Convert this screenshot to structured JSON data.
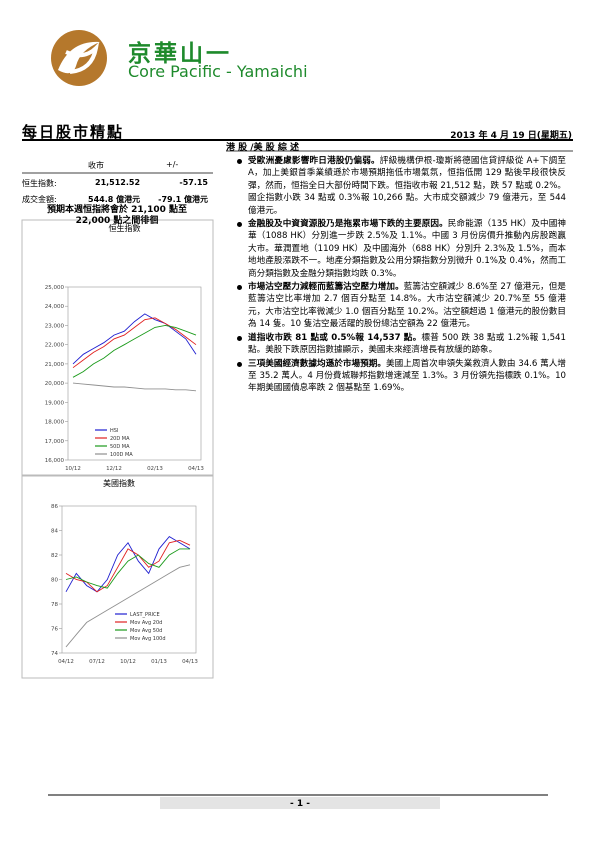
{
  "header": {
    "brand_cn": "京華山一",
    "brand_en": "Core Pacific - Yamaichi",
    "report_title": "每日股市精點",
    "date": "2013 年 4 月 19 日(星期五)"
  },
  "market_table": {
    "col_close": "收市",
    "col_change": "+/-",
    "rows": [
      [
        "恒生指數:",
        "21,512.52",
        "-57.15"
      ],
      [
        "成交金額:",
        "544.8 億港元",
        "-79.1 億港元"
      ]
    ],
    "outlook": "預期本週恒指將會於 21,100 點至 22,000 點之間徘徊"
  },
  "commentary": {
    "heading": "港 股 /美 股 綜 述",
    "items": [
      {
        "lead": "受歐洲憂慮影響昨日港股仍偏弱。",
        "text": "評級機構伊根-瓊斯將德國信貸評級從 A+下調至 A，加上美銀首季業績遜於市場預期拖低市場氣氛，恒指低開 129 點後早段很快反彈，然而，恒指全日大部份時間下跌。恒指收市報 21,512 點，跌 57 點或 0.2%。國企指數小跌 34 點或 0.3%報 10,266 點。大市成交額減少 79 億港元，至 544 億港元。"
      },
      {
        "lead": "金融股及中資資源股乃是拖累市場下跌的主要原因。",
        "text": "民命能源（135 HK）及中國神華（1088 HK）分別進一步跌 2.5%及 1.1%。中國 3 月份房價升推動內房股跑贏大市。華潤置地（1109 HK）及中國海外（688 HK）分別升 2.3%及 1.5%，而本地地產股漲跌不一。地產分類指數及公用分類指數分別微升 0.1%及 0.4%，然而工商分類指數及金融分類指數均跌 0.3%。"
      },
      {
        "lead": "市場沽空壓力減輕而藍籌沽空壓力增加。",
        "text": "藍籌沽空額減少 8.6%至 27 億港元，但是藍籌沽空比率增加 2.7 個百分點至 14.8%。大市沽空額減少 20.7%至 55 億港元，大市沽空比率微減少 1.0 個百分點至 10.2%。沽空額超過 1 億港元的股份數目為 14 隻。10 隻沽空最活躍的股份總沽空額為 22 億港元。"
      },
      {
        "lead": "道指收市跌 81 點或 0.5%報 14,537 點。",
        "text": "標普 500 跌 38 點或 1.2%報 1,541 點。美股下跌原因指數據顯示，美國未來經濟增長有放緩的跡象。"
      },
      {
        "lead": "三項美國經濟數據均遜於市場預期。",
        "text": "美國上周首次申領失業救濟人數由 34.6 萬人增至 35.2 萬人。4 月份費城聯邦指數增速減至 1.3%。3 月份領先指標跌 0.1%。10 年期美國國債息率跌 2 個基點至 1.69%。"
      }
    ]
  },
  "chart_data": [
    {
      "type": "line",
      "title": "恒生指數",
      "categories": [
        "10/12",
        null,
        null,
        null,
        "12/12",
        null,
        null,
        null,
        "02/13",
        null,
        null,
        null,
        "04/13"
      ],
      "ylim": [
        16000,
        25000
      ],
      "yticks": [
        {
          "value": 25000,
          "label": "25,000"
        },
        {
          "value": 24000,
          "label": "24,000"
        },
        {
          "value": 23000,
          "label": "23,000"
        },
        {
          "value": 22000,
          "label": "22,000"
        },
        {
          "value": 21000,
          "label": "21,000"
        },
        {
          "value": 20000,
          "label": "20,000"
        },
        {
          "value": 19000,
          "label": "19,000"
        },
        {
          "value": 18000,
          "label": "18,000"
        },
        {
          "value": 17000,
          "label": "17,000"
        },
        {
          "value": 16000,
          "label": "16,000"
        }
      ],
      "series": [
        {
          "name": "HSI",
          "color": "#1f1fd0",
          "values": [
            21000,
            21500,
            21800,
            22100,
            22500,
            22700,
            23200,
            23600,
            23300,
            23100,
            22700,
            22300,
            21500
          ]
        },
        {
          "name": "20D MA",
          "color": "#e02020",
          "values": [
            20800,
            21200,
            21600,
            21900,
            22300,
            22500,
            22900,
            23300,
            23400,
            23100,
            22800,
            22400,
            22000
          ]
        },
        {
          "name": "50D MA",
          "color": "#1a9a1a",
          "values": [
            20300,
            20600,
            21000,
            21300,
            21700,
            22000,
            22300,
            22600,
            22900,
            23000,
            22900,
            22700,
            22500
          ]
        },
        {
          "name": "100D MA",
          "color": "#909090",
          "values": [
            20000,
            19950,
            19900,
            19850,
            19800,
            19800,
            19750,
            19700,
            19700,
            19700,
            19650,
            19650,
            19600
          ]
        }
      ]
    },
    {
      "type": "line",
      "title": "美國指數",
      "categories": [
        "04/12",
        null,
        null,
        "07/12",
        null,
        null,
        "10/12",
        null,
        null,
        "01/13",
        null,
        null,
        "04/13"
      ],
      "ylim": [
        74,
        86
      ],
      "yticks": [
        86,
        84,
        82,
        80,
        78,
        76,
        74
      ],
      "series": [
        {
          "name": "LAST_PRICE",
          "color": "#1f1fd0",
          "values": [
            79,
            80.5,
            79.5,
            79,
            80,
            82,
            83,
            81.5,
            80.5,
            82.5,
            83.5,
            83,
            82.5
          ]
        },
        {
          "name": "Mov Avg 20d",
          "color": "#e02020",
          "values": [
            80.5,
            80,
            79.8,
            79,
            79.5,
            81,
            82.5,
            82,
            81,
            81.5,
            83,
            83.2,
            82.8
          ]
        },
        {
          "name": "Mov Avg 50d",
          "color": "#1a9a1a",
          "values": [
            80,
            80.2,
            79.8,
            79.5,
            79.3,
            80.5,
            81.5,
            82,
            81.3,
            81,
            82,
            82.5,
            82.5
          ]
        },
        {
          "name": "Mov Avg 100d",
          "color": "#909090",
          "values": [
            74.5,
            75.5,
            76.5,
            77,
            77.5,
            78,
            78.5,
            79,
            79.5,
            80,
            80.5,
            81,
            81.2
          ]
        }
      ]
    }
  ]
}
